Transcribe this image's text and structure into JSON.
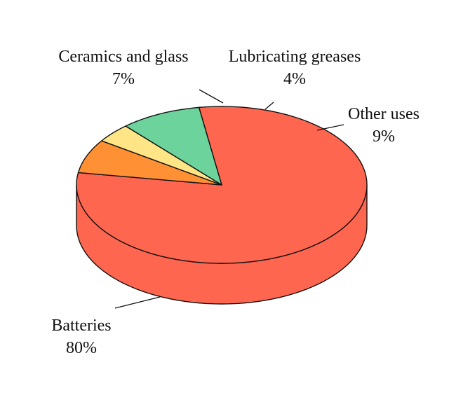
{
  "chart_data": {
    "type": "pie",
    "style": "3d",
    "title": "",
    "slices": [
      {
        "label": "Batteries",
        "value_label": "80%",
        "value": 80,
        "color": "#ff6650"
      },
      {
        "label": "Ceramics and glass",
        "value_label": "7%",
        "value": 7,
        "color": "#ff9033"
      },
      {
        "label": "Lubricating greases",
        "value_label": "4%",
        "value": 4,
        "color": "#ffe585"
      },
      {
        "label": "Other uses",
        "value_label": "9%",
        "value": 9,
        "color": "#6bd39b"
      }
    ]
  }
}
